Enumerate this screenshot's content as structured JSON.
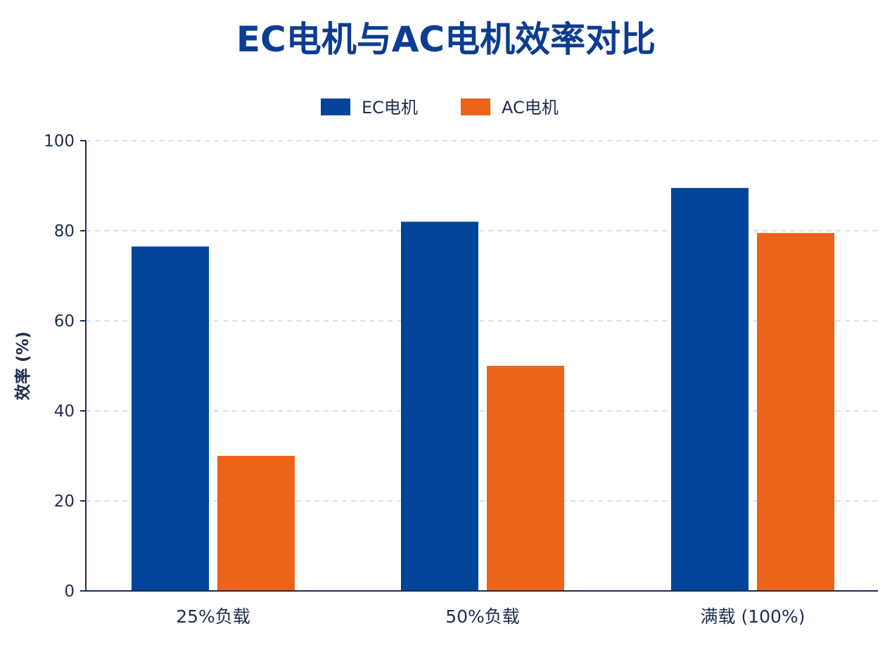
{
  "chart_data": {
    "type": "bar",
    "title": "EC电机与AC电机效率对比",
    "xlabel": "",
    "ylabel": "效率 (%)",
    "categories": [
      "25%负载",
      "50%负载",
      "满载 (100%)"
    ],
    "series": [
      {
        "name": "EC电机",
        "color": "#00459A",
        "values": [
          76.5,
          82,
          89.5
        ]
      },
      {
        "name": "AC电机",
        "color": "#EC6319",
        "values": [
          30,
          50,
          79.5
        ]
      }
    ],
    "ylim": [
      0,
      100
    ],
    "yticks": [
      0,
      20,
      40,
      60,
      80,
      100
    ],
    "grid": true,
    "legend_position": "top-center",
    "colors": {
      "title": "#0B3D91",
      "text": "#1F2D4D",
      "axis": "#1F2D4D",
      "grid": "#C9D8EC"
    }
  }
}
